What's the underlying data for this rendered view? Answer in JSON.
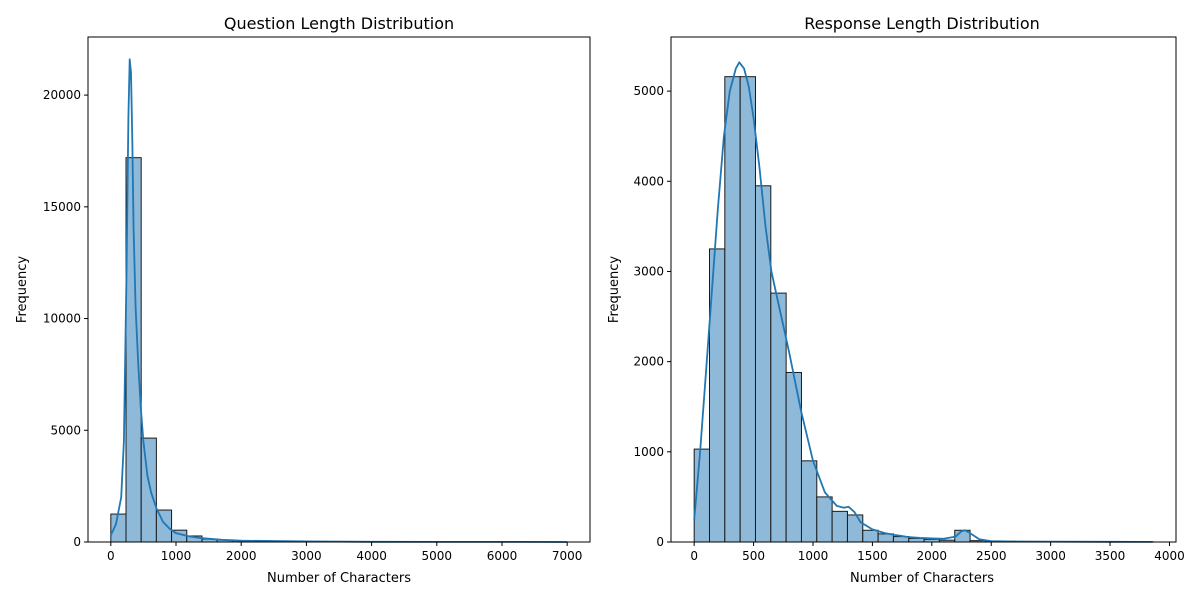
{
  "chart_data": [
    {
      "type": "bar",
      "title": "Question Length Distribution",
      "xlabel": "Number of Characters",
      "ylabel": "Frequency",
      "xlim": [
        -350,
        7350
      ],
      "ylim": [
        0,
        22600
      ],
      "xticks": [
        0,
        1000,
        2000,
        3000,
        4000,
        5000,
        6000,
        7000
      ],
      "yticks": [
        0,
        5000,
        10000,
        15000,
        20000
      ],
      "bin_width": 233,
      "bins_start": [
        0,
        233,
        466,
        699,
        932,
        1165,
        1398,
        1631,
        1864,
        2097,
        2330,
        2563,
        2796,
        3029,
        3262,
        3495,
        3728,
        3961,
        4194,
        4427,
        4660,
        4893,
        5126,
        5359,
        5592,
        5825,
        6058,
        6291,
        6524,
        6757
      ],
      "values": [
        1250,
        17200,
        4650,
        1430,
        530,
        270,
        130,
        90,
        65,
        45,
        35,
        25,
        20,
        15,
        12,
        10,
        8,
        7,
        6,
        5,
        4,
        4,
        3,
        3,
        2,
        2,
        2,
        1,
        1,
        1
      ],
      "kde": {
        "x": [
          0,
          80,
          160,
          200,
          240,
          270,
          290,
          310,
          330,
          350,
          380,
          420,
          460,
          500,
          560,
          620,
          700,
          800,
          900,
          1000,
          1200,
          1400,
          1700,
          2000,
          3000,
          4000,
          5000,
          6000,
          7000
        ],
        "y": [
          300,
          800,
          2000,
          4500,
          12000,
          19000,
          21600,
          21000,
          18000,
          14000,
          10500,
          8000,
          6000,
          4500,
          3000,
          2200,
          1500,
          900,
          600,
          400,
          250,
          170,
          100,
          60,
          25,
          10,
          6,
          3,
          1
        ]
      },
      "style": {
        "bar_fill": "#8fb9d8",
        "bar_stroke": "#1a1a1a",
        "kde_color": "#1f77b4",
        "grid": false
      }
    },
    {
      "type": "bar",
      "title": "Response Length Distribution",
      "xlabel": "Number of Characters",
      "ylabel": "Frequency",
      "xlim": [
        -195,
        4055
      ],
      "ylim": [
        0,
        5600
      ],
      "xticks": [
        0,
        500,
        1000,
        1500,
        2000,
        2500,
        3000,
        3500,
        4000
      ],
      "yticks": [
        0,
        1000,
        2000,
        3000,
        4000,
        5000
      ],
      "bin_width": 129,
      "bins_start": [
        0,
        129,
        258,
        387,
        516,
        645,
        774,
        903,
        1032,
        1161,
        1290,
        1419,
        1548,
        1677,
        1806,
        1935,
        2064,
        2193,
        2322,
        2451,
        2580,
        2709,
        2838,
        2967,
        3096,
        3225,
        3354,
        3483,
        3612,
        3741
      ],
      "values": [
        1030,
        3250,
        5160,
        5160,
        3950,
        2760,
        1880,
        900,
        500,
        340,
        300,
        130,
        90,
        60,
        40,
        30,
        20,
        130,
        15,
        10,
        8,
        6,
        5,
        4,
        3,
        3,
        2,
        2,
        1,
        1
      ],
      "kde": {
        "x": [
          0,
          50,
          100,
          150,
          200,
          250,
          300,
          350,
          380,
          420,
          460,
          500,
          550,
          600,
          650,
          700,
          750,
          800,
          900,
          1000,
          1100,
          1200,
          1260,
          1300,
          1350,
          1400,
          1500,
          1600,
          1700,
          1800,
          1900,
          2000,
          2100,
          2200,
          2250,
          2280,
          2320,
          2400,
          2500,
          2700,
          3000,
          3500,
          3860
        ],
        "y": [
          250,
          1000,
          1900,
          2800,
          3700,
          4500,
          5000,
          5250,
          5320,
          5250,
          5050,
          4700,
          4150,
          3500,
          3000,
          2700,
          2400,
          2100,
          1450,
          900,
          550,
          400,
          380,
          390,
          330,
          220,
          140,
          100,
          75,
          55,
          45,
          40,
          35,
          60,
          120,
          130,
          100,
          30,
          10,
          6,
          4,
          2,
          1
        ]
      },
      "style": {
        "bar_fill": "#8fb9d8",
        "bar_stroke": "#1a1a1a",
        "kde_color": "#1f77b4",
        "grid": false
      }
    }
  ]
}
